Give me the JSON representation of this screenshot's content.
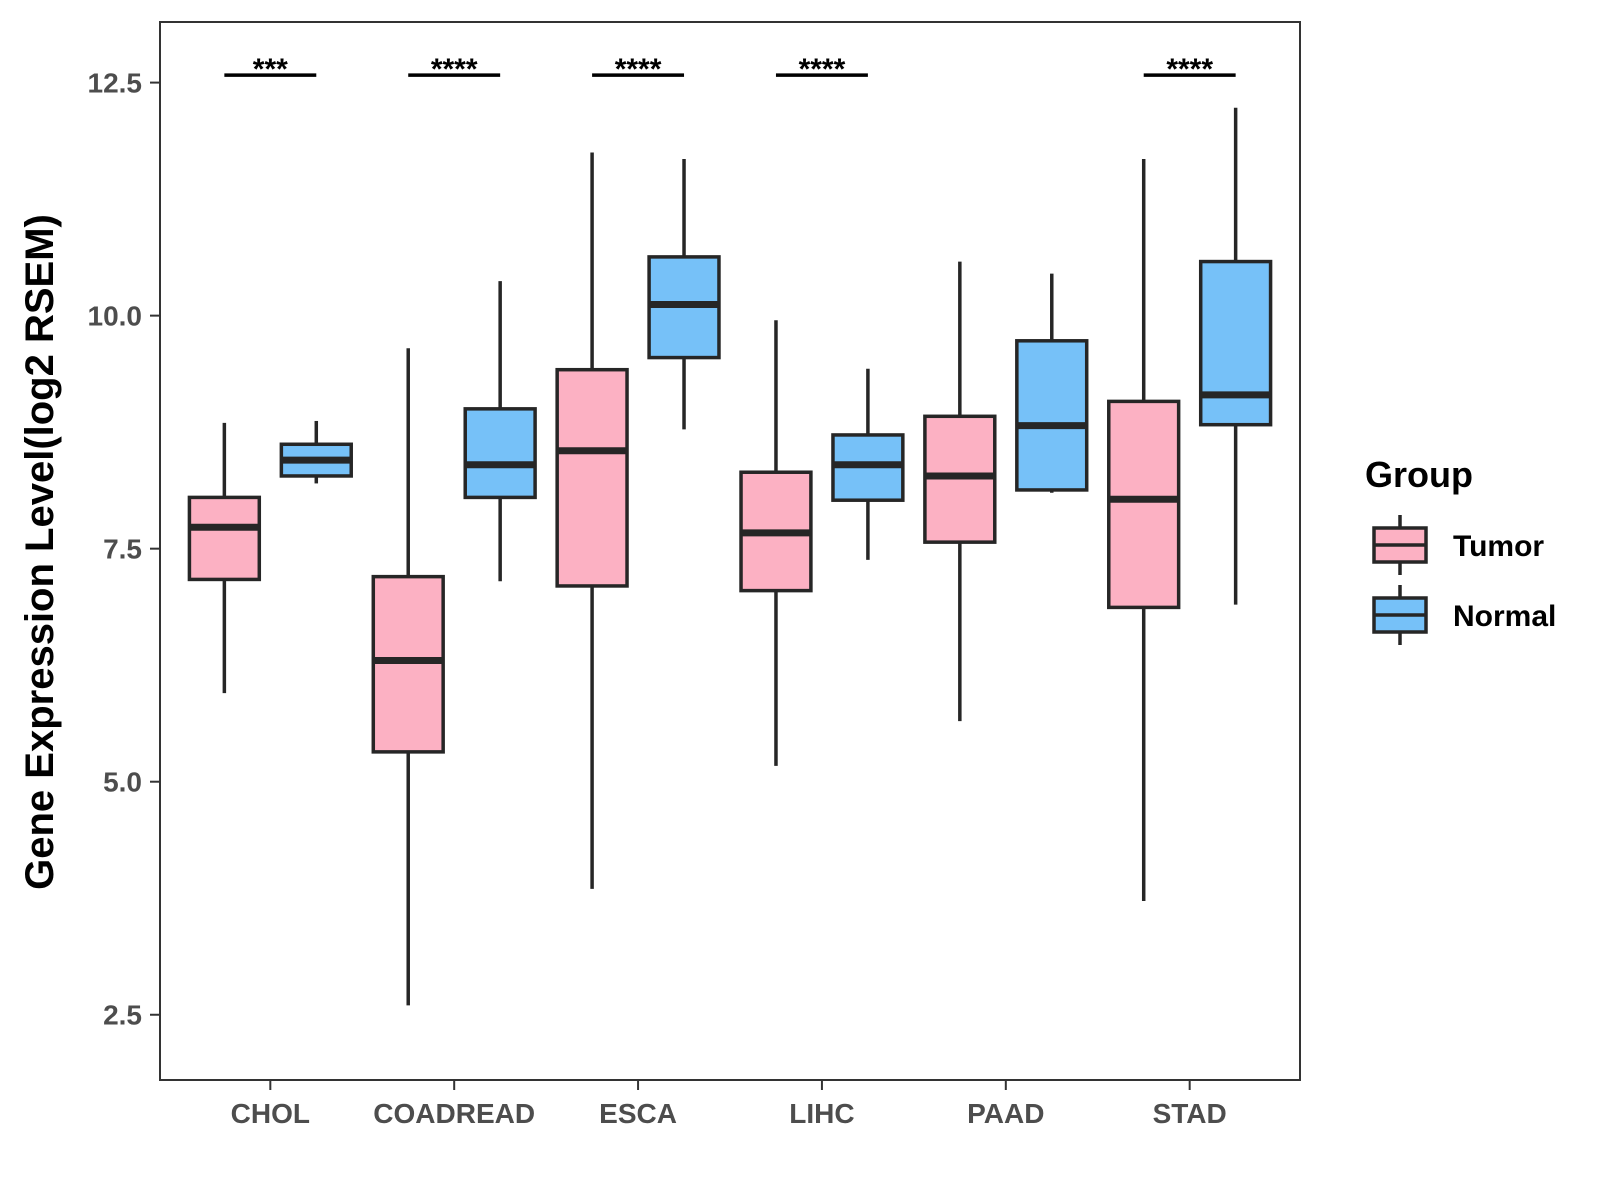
{
  "chart_data": {
    "type": "boxplot",
    "title": "",
    "xlabel": "",
    "ylabel": "Gene Expression Level(log2 RSEM)",
    "ylim": [
      1.8,
      13.15
    ],
    "yticks": [
      2.5,
      5.0,
      7.5,
      10.0,
      12.5
    ],
    "ytick_labels": [
      "2.5",
      "5.0",
      "7.5",
      "10.0",
      "12.5"
    ],
    "categories": [
      "CHOL",
      "COADREAD",
      "ESCA",
      "LIHC",
      "PAAD",
      "STAD"
    ],
    "legend": {
      "title": "Group",
      "position": "right"
    },
    "series": [
      {
        "name": "Tumor",
        "color": "#fcb1c3",
        "boxes": [
          {
            "min": 5.95,
            "q1": 7.17,
            "median": 7.73,
            "q3": 8.05,
            "max": 8.85
          },
          {
            "min": 2.6,
            "q1": 5.32,
            "median": 6.3,
            "q3": 7.2,
            "max": 9.65
          },
          {
            "min": 3.85,
            "q1": 7.1,
            "median": 8.55,
            "q3": 9.42,
            "max": 11.75
          },
          {
            "min": 5.17,
            "q1": 7.05,
            "median": 7.67,
            "q3": 8.32,
            "max": 9.95
          },
          {
            "min": 5.65,
            "q1": 7.57,
            "median": 8.28,
            "q3": 8.92,
            "max": 10.58
          },
          {
            "min": 3.72,
            "q1": 6.87,
            "median": 8.03,
            "q3": 9.08,
            "max": 11.68
          }
        ]
      },
      {
        "name": "Normal",
        "color": "#76c1f8",
        "boxes": [
          {
            "min": 8.2,
            "q1": 8.28,
            "median": 8.45,
            "q3": 8.62,
            "max": 8.87
          },
          {
            "min": 7.15,
            "q1": 8.05,
            "median": 8.4,
            "q3": 9.0,
            "max": 10.37
          },
          {
            "min": 8.78,
            "q1": 9.55,
            "median": 10.12,
            "q3": 10.63,
            "max": 11.68
          },
          {
            "min": 7.38,
            "q1": 8.02,
            "median": 8.4,
            "q3": 8.72,
            "max": 9.43
          },
          {
            "min": 8.1,
            "q1": 8.13,
            "median": 8.82,
            "q3": 9.73,
            "max": 10.45
          },
          {
            "min": 6.9,
            "q1": 8.83,
            "median": 9.15,
            "q3": 10.58,
            "max": 12.23
          }
        ]
      }
    ],
    "significance": [
      {
        "category": "CHOL",
        "label": "***"
      },
      {
        "category": "COADREAD",
        "label": "****"
      },
      {
        "category": "ESCA",
        "label": "****"
      },
      {
        "category": "LIHC",
        "label": "****"
      },
      {
        "category": "PAAD",
        "label": ""
      },
      {
        "category": "STAD",
        "label": "****"
      }
    ],
    "significance_y": 12.58
  }
}
